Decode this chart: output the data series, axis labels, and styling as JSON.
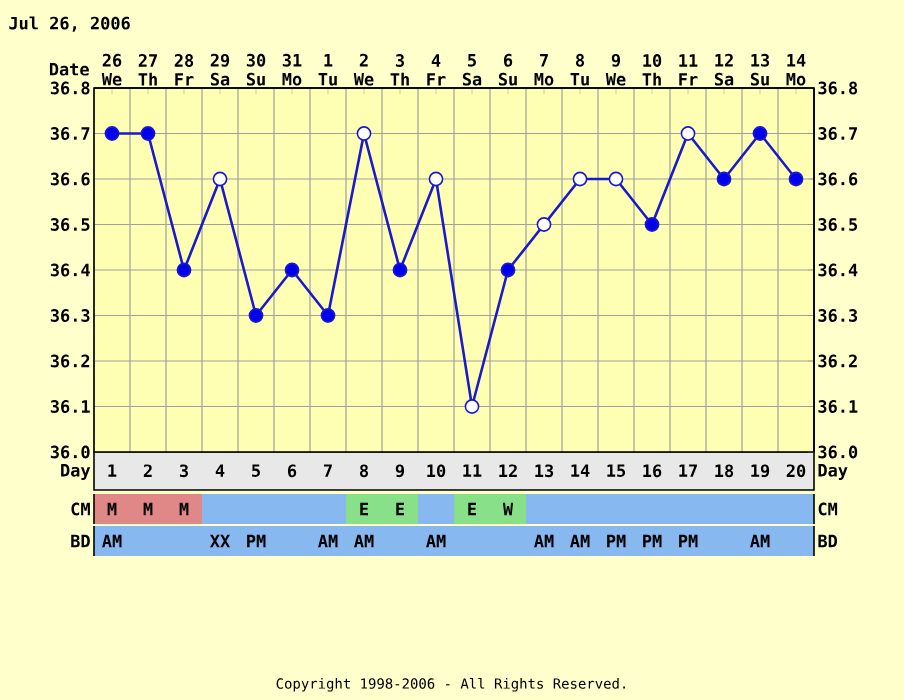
{
  "chart_data": [
    {
      "type": "line",
      "title": "Jul 26, 2006",
      "xlabel": "Day",
      "x2label": "Date",
      "series": [
        {
          "color": "#1a1acc",
          "colors": [
            "#0000ee",
            "#0000ee",
            "#0000ee",
            "#ffffff",
            "#0000ee",
            "#0000ee",
            "#0000ee",
            "#ffffff",
            "#0000ee",
            "#ffffff",
            "#ffffff",
            "#0000ee",
            "#ffffff",
            "#ffffff",
            "#ffffff",
            "#0000ee",
            "#ffffff",
            "#0000ee",
            "#0000ee",
            "#0000ee"
          ],
          "x": [
            1,
            2,
            3,
            4,
            5,
            6,
            7,
            8,
            9,
            10,
            11,
            12,
            13,
            14,
            15,
            16,
            17,
            18,
            19,
            20
          ],
          "values": [
            36.7,
            36.7,
            36.4,
            36.6,
            36.3,
            36.4,
            36.3,
            36.7,
            36.4,
            36.6,
            36.1,
            36.4,
            36.5,
            36.6,
            36.6,
            36.5,
            36.7,
            36.6,
            36.7,
            36.6
          ]
        }
      ],
      "xlim": [
        0.5,
        20.5
      ],
      "xticks": [
        1,
        2,
        3,
        4,
        5,
        6,
        7,
        8,
        9,
        10,
        11,
        12,
        13,
        14,
        15,
        16,
        17,
        18,
        19,
        20
      ],
      "x2lim": [
        "2006-07-25T12:00",
        "2006-08-14T12:00"
      ],
      "x2ticks": [
        {
          "value": "2006-07-26",
          "label": "26 We"
        },
        {
          "value": "2006-07-27",
          "label": "27 Th"
        },
        {
          "value": "2006-07-28",
          "label": "28 Fr"
        },
        {
          "value": "2006-07-29",
          "label": "29 Sa"
        },
        {
          "value": "2006-07-30",
          "label": "30 Su"
        },
        {
          "value": "2006-07-31",
          "label": "31 Mo"
        },
        {
          "value": "2006-08-01",
          "label": "1 Tu"
        },
        {
          "value": "2006-08-02",
          "label": "2 We"
        },
        {
          "value": "2006-08-03",
          "label": "3 Th"
        },
        {
          "value": "2006-08-04",
          "label": "4 Fr"
        },
        {
          "value": "2006-08-05",
          "label": "5 Sa"
        },
        {
          "value": "2006-08-06",
          "label": "6 Su"
        },
        {
          "value": "2006-08-07",
          "label": "7 Mo"
        },
        {
          "value": "2006-08-08",
          "label": "8 Tu"
        },
        {
          "value": "2006-08-09",
          "label": "9 We"
        },
        {
          "value": "2006-08-10",
          "label": "10 Th"
        },
        {
          "value": "2006-08-11",
          "label": "11 Fr"
        },
        {
          "value": "2006-08-12",
          "label": "12 Sa"
        },
        {
          "value": "2006-08-13",
          "label": "13 Su"
        },
        {
          "value": "2006-08-14",
          "label": "14 Mo"
        }
      ],
      "ylim": [
        36.0,
        36.8
      ],
      "yticks": [
        {
          "value": 36.0,
          "label": "36.0"
        },
        36.1,
        36.2,
        36.3,
        36.4,
        36.5,
        36.6,
        36.7,
        36.8
      ],
      "y2lim": [
        36.0,
        36.8
      ],
      "y2ticks": [
        {
          "value": 36.0,
          "label": "36.0"
        },
        36.1,
        36.2,
        36.3,
        36.4,
        36.5,
        36.6,
        36.7,
        36.8
      ],
      "grid": true,
      "marker": "circle",
      "line_style": "solid",
      "annotations": [
        "Copyright 1998-2006 - All Rights Reserved."
      ]
    },
    {
      "type": "other",
      "title": "CM",
      "categories": [
        "M",
        "M",
        "M",
        null,
        null,
        null,
        null,
        "E",
        "E",
        null,
        "E",
        "W",
        null,
        null,
        null,
        null,
        null,
        null,
        null,
        null
      ],
      "color": "#88b8f0",
      "colors": [
        "#e08888",
        "#e08888",
        "#e08888",
        "#88b8f0",
        "#88b8f0",
        "#88b8f0",
        "#88b8f0",
        "#88e088",
        "#88e088",
        "#88b8f0",
        "#88e088",
        "#88e088",
        "#88b8f0",
        "#88b8f0",
        "#88b8f0",
        "#88b8f0",
        "#88b8f0",
        "#88b8f0",
        "#88b8f0",
        "#88b8f0"
      ]
    },
    {
      "type": "other",
      "title": "BD",
      "categories": [
        "AM",
        null,
        null,
        "XX",
        "PM",
        null,
        "AM",
        "AM",
        null,
        "AM",
        null,
        null,
        "AM",
        "AM",
        "PM",
        "PM",
        "PM",
        null,
        "AM",
        null
      ],
      "color": "#88b8f0"
    }
  ]
}
